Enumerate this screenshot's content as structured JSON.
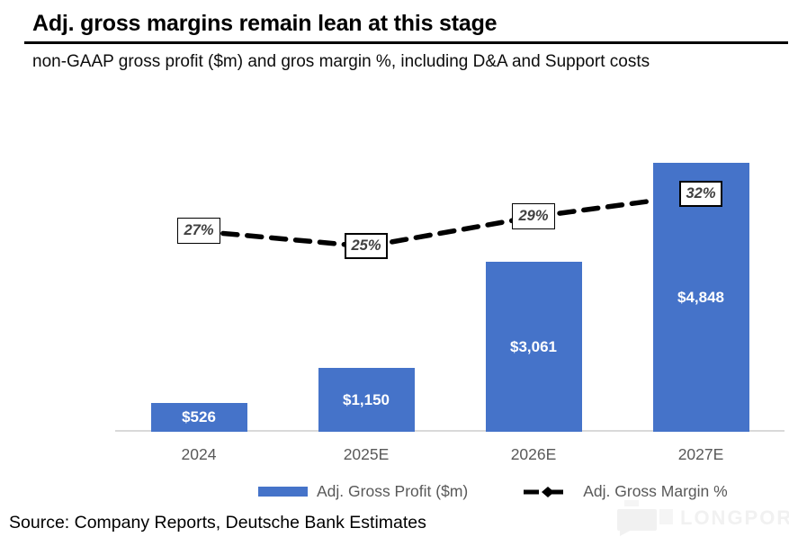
{
  "header": {
    "title": "Adj. gross margins remain lean at this stage",
    "subtitle": "non-GAAP gross profit ($m) and gros margin %, including D&A and Support costs"
  },
  "chart_data": {
    "type": "bar",
    "categories": [
      "2024",
      "2025E",
      "2026E",
      "2027E"
    ],
    "series": [
      {
        "name": "Adj. Gross Profit ($m)",
        "type": "bar",
        "values": [
          526,
          1150,
          3061,
          4848
        ],
        "labels": [
          "$526",
          "$1,150",
          "$3,061",
          "$4,848"
        ],
        "color": "#4573c9"
      },
      {
        "name": "Adj. Gross Margin %",
        "type": "line",
        "style": "dashed",
        "marker": "diamond",
        "values": [
          27,
          25,
          29,
          32
        ],
        "labels": [
          "27%",
          "25%",
          "29%",
          "32%"
        ],
        "color": "#000000"
      }
    ],
    "title": "Adj. gross margins remain lean at this stage",
    "xlabel": "",
    "ylabel": "",
    "ylim_bars": [
      0,
      5000
    ],
    "ylim_line_pct": [
      0,
      37
    ],
    "grid": false,
    "legend_position": "bottom"
  },
  "legend": {
    "bar_label": "Adj. Gross Profit ($m)",
    "line_label": "Adj. Gross Margin %"
  },
  "footer": {
    "source": "Source: Company Reports, Deutsche Bank Estimates",
    "watermark": "LONGPORT"
  },
  "colors": {
    "bar": "#4573c9",
    "axis_line": "#d9d9d9",
    "axis_text": "#595959",
    "bar_value_text": "#ffffff",
    "margin_label_text": "#404040",
    "line": "#000000",
    "watermark": "#f1f1f1"
  }
}
